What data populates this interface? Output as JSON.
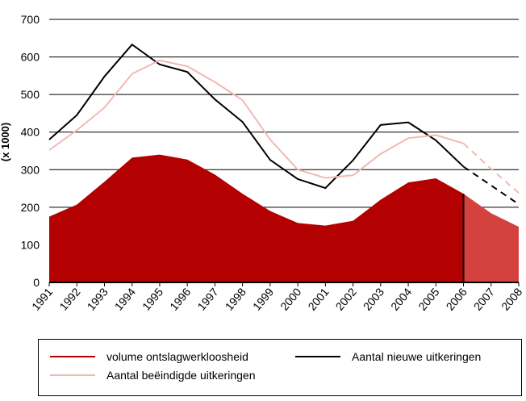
{
  "colors": {
    "area_fill": "#b30000",
    "area_forecast_fill": "#d4423f",
    "new_line": "#000000",
    "ended_line": "#f2b8b5",
    "grid": "#000000"
  },
  "chart_data": {
    "type": "area",
    "title": "",
    "xlabel": "",
    "ylabel": "(x 1000)",
    "ylim": [
      0,
      700
    ],
    "yticks": [
      0,
      100,
      200,
      300,
      400,
      500,
      600,
      700
    ],
    "grid": true,
    "forecast_from": "2006",
    "categories": [
      "1991",
      "1992",
      "1993",
      "1994",
      "1995",
      "1996",
      "1997",
      "1998",
      "1999",
      "2000",
      "2001",
      "2002",
      "2003",
      "2004",
      "2005",
      "2006",
      "2007",
      "2008"
    ],
    "series": [
      {
        "name": "volume ontslagwerkloosheid",
        "kind": "area",
        "color": "#b30000",
        "values": [
          175,
          207,
          268,
          332,
          340,
          327,
          287,
          236,
          190,
          158,
          151,
          164,
          220,
          266,
          277,
          236,
          184,
          148
        ]
      },
      {
        "name": "Aantal nieuwe uitkeringen",
        "kind": "line",
        "color": "#000000",
        "values": [
          380,
          445,
          548,
          633,
          580,
          560,
          487,
          427,
          326,
          275,
          251,
          325,
          419,
          426,
          378,
          308,
          258,
          208
        ]
      },
      {
        "name": "Aantal beëindigde uitkeringen",
        "kind": "line",
        "color": "#f2b8b5",
        "values": [
          352,
          405,
          465,
          555,
          591,
          575,
          533,
          485,
          380,
          300,
          278,
          285,
          342,
          384,
          392,
          370,
          302,
          238
        ]
      }
    ]
  },
  "legend": {
    "area_label": "volume ontslagwerkloosheid",
    "new_label": "Aantal nieuwe uitkeringen",
    "ended_label": "Aantal beëindigde uitkeringen"
  }
}
